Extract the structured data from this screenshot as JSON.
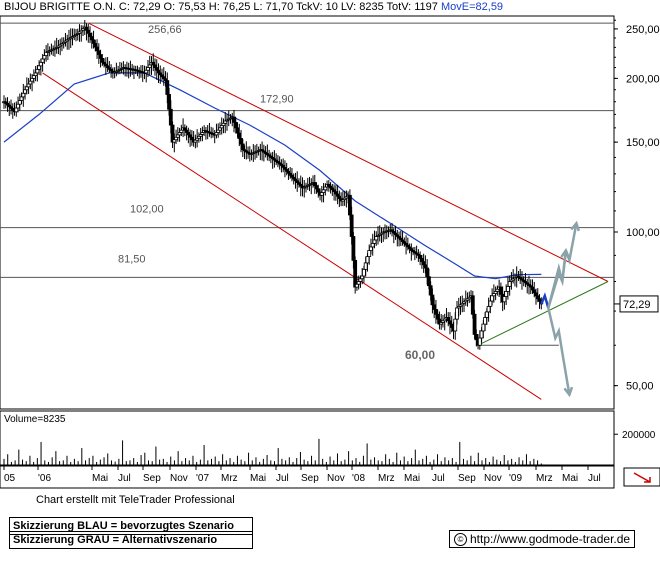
{
  "header": {
    "text": "BIJOU BRIGITTE O.N. C: 72,29 O: 75,53 H: 76,25 L: 71,70 TckV: 10 LV: 8235 TotV: 1197",
    "ma_text": "MovE=82,59"
  },
  "chart_data": {
    "type": "candlestick",
    "y_scale": "log",
    "ylim": [
      45,
      265
    ],
    "price_ticks": [
      "250,00",
      "200,00",
      "150,00",
      "100,00",
      "50,00"
    ],
    "price_tick_values": [
      250,
      200,
      150,
      100,
      50
    ],
    "last_price_label": "72,29",
    "levels": [
      {
        "label": "256,66",
        "value": 256.66
      },
      {
        "label": "172,90",
        "value": 172.9
      },
      {
        "label": "102,00",
        "value": 102.0
      },
      {
        "label": "81,50",
        "value": 81.5
      },
      {
        "label": "60,00",
        "value": 60.0
      }
    ],
    "x_labels": [
      "05",
      "'06",
      "Mai",
      "Jul",
      "Sep",
      "Nov",
      "'07",
      "Mrz",
      "Mai",
      "Jul",
      "Sep",
      "Nov",
      "'08",
      "Mrz",
      "Mai",
      "Jul",
      "Sep",
      "Nov",
      "'09",
      "Mrz",
      "Mai",
      "Jul"
    ],
    "price_path": [
      [
        0,
        180
      ],
      [
        3,
        172
      ],
      [
        6,
        190
      ],
      [
        9,
        205
      ],
      [
        12,
        225
      ],
      [
        15,
        230
      ],
      [
        18,
        238
      ],
      [
        21,
        245
      ],
      [
        23,
        252
      ],
      [
        25,
        238
      ],
      [
        28,
        215
      ],
      [
        31,
        205
      ],
      [
        34,
        210
      ],
      [
        37,
        208
      ],
      [
        40,
        205
      ],
      [
        42,
        215
      ],
      [
        44,
        205
      ],
      [
        46,
        198
      ],
      [
        48,
        150
      ],
      [
        51,
        160
      ],
      [
        54,
        150
      ],
      [
        57,
        158
      ],
      [
        60,
        155
      ],
      [
        63,
        165
      ],
      [
        65,
        168
      ],
      [
        66,
        160
      ],
      [
        68,
        145
      ],
      [
        70,
        142
      ],
      [
        73,
        145
      ],
      [
        76,
        140
      ],
      [
        79,
        135
      ],
      [
        82,
        128
      ],
      [
        85,
        122
      ],
      [
        88,
        125
      ],
      [
        90,
        118
      ],
      [
        92,
        124
      ],
      [
        94,
        120
      ],
      [
        96,
        115
      ],
      [
        98,
        118
      ],
      [
        100,
        78
      ],
      [
        102,
        82
      ],
      [
        104,
        92
      ],
      [
        106,
        98
      ],
      [
        108,
        100
      ],
      [
        110,
        101
      ],
      [
        112,
        98
      ],
      [
        114,
        95
      ],
      [
        116,
        92
      ],
      [
        118,
        90
      ],
      [
        120,
        85
      ],
      [
        122,
        72
      ],
      [
        124,
        66
      ],
      [
        126,
        68
      ],
      [
        128,
        64
      ],
      [
        129,
        71
      ],
      [
        131,
        73
      ],
      [
        133,
        75
      ],
      [
        134,
        63
      ],
      [
        135,
        60
      ],
      [
        137,
        68
      ],
      [
        139,
        75
      ],
      [
        141,
        78
      ],
      [
        142,
        73
      ],
      [
        144,
        80
      ],
      [
        146,
        82
      ],
      [
        148,
        80
      ],
      [
        150,
        78
      ],
      [
        152,
        74
      ],
      [
        153,
        72.3
      ]
    ],
    "ma_path": [
      [
        0,
        150
      ],
      [
        10,
        170
      ],
      [
        20,
        195
      ],
      [
        30,
        205
      ],
      [
        40,
        205
      ],
      [
        50,
        190
      ],
      [
        60,
        175
      ],
      [
        70,
        162
      ],
      [
        80,
        148
      ],
      [
        90,
        132
      ],
      [
        100,
        115
      ],
      [
        110,
        104
      ],
      [
        120,
        94
      ],
      [
        128,
        87
      ],
      [
        134,
        82
      ],
      [
        140,
        81
      ],
      [
        146,
        82.5
      ],
      [
        153,
        82.6
      ]
    ],
    "trend_lines": [
      {
        "color": "#cc0000",
        "points": [
          [
            24,
            256.66
          ],
          [
            172,
            80
          ]
        ]
      },
      {
        "color": "#cc0000",
        "points": [
          [
            11,
            205
          ],
          [
            153,
            47
          ]
        ]
      },
      {
        "color": "#2a7a1a",
        "points": [
          [
            135,
            60
          ],
          [
            172,
            80
          ]
        ]
      }
    ],
    "scenario_blue": {
      "color": "#1a3fc8",
      "points": [
        [
          153,
          72.3
        ],
        [
          154,
          75
        ],
        [
          155,
          71
        ]
      ]
    },
    "scenario_grey": {
      "color": "#8aa2a8",
      "branches": [
        [
          [
            155,
            71
          ],
          [
            158,
            85
          ],
          [
            159,
            80
          ],
          [
            160,
            92
          ],
          [
            161,
            88
          ],
          [
            163,
            104
          ]
        ],
        [
          [
            155,
            71
          ],
          [
            158,
            83
          ],
          [
            159,
            80
          ],
          [
            160,
            92
          ]
        ],
        [
          [
            155,
            71
          ],
          [
            157,
            62
          ],
          [
            158,
            64
          ],
          [
            159,
            58
          ],
          [
            161,
            48
          ]
        ]
      ]
    },
    "volume_label": "Volume=8235",
    "volume_tick": "200000",
    "volume_values": [
      40000,
      70000,
      20000,
      30000,
      100000,
      35000,
      25000,
      60000,
      20000,
      45000,
      150000,
      30000,
      20000,
      50000,
      90000,
      25000,
      30000,
      60000,
      20000,
      40000,
      25000,
      110000,
      30000,
      45000,
      60000,
      20000,
      35000,
      50000,
      75000,
      30000,
      22000,
      40000,
      160000,
      25000,
      30000,
      45000,
      20000,
      65000,
      80000,
      30000,
      25000,
      120000,
      35000,
      40000,
      20000,
      55000,
      30000,
      90000,
      25000,
      45000,
      30000,
      60000,
      20000,
      35000,
      130000,
      30000,
      40000,
      55000,
      25000,
      70000,
      30000,
      45000,
      20000,
      60000,
      35000,
      25000,
      80000,
      30000,
      50000,
      20000,
      40000,
      65000,
      30000,
      25000,
      110000,
      40000,
      30000,
      50000,
      20000,
      45000,
      85000,
      35000,
      25000,
      60000,
      30000,
      170000,
      40000,
      20000,
      55000,
      30000,
      75000,
      25000,
      35000,
      90000,
      30000,
      45000,
      20000,
      60000,
      140000,
      35000,
      50000,
      30000,
      25000,
      70000,
      40000,
      20000,
      80000,
      30000,
      55000,
      25000,
      45000,
      100000,
      30000,
      40000,
      60000,
      20000,
      35000,
      70000,
      25000,
      50000,
      30000,
      45000,
      20000,
      150000,
      40000,
      30000,
      60000,
      25000,
      80000,
      30000,
      45000,
      20000,
      55000,
      35000,
      25000,
      65000,
      30000,
      40000,
      20000,
      50000,
      30000,
      70000,
      25000,
      40000,
      30000,
      10000
    ]
  },
  "footer": {
    "credit": "Chart erstellt mit TeleTrader Professional",
    "legend_blue": "Skizzierung BLAU = bevorzugtes Szenario",
    "legend_grey": "Skizzierung GRAU = Alternativszenario",
    "url": "http://www.godmode-trader.de",
    "url_icon": "©"
  }
}
